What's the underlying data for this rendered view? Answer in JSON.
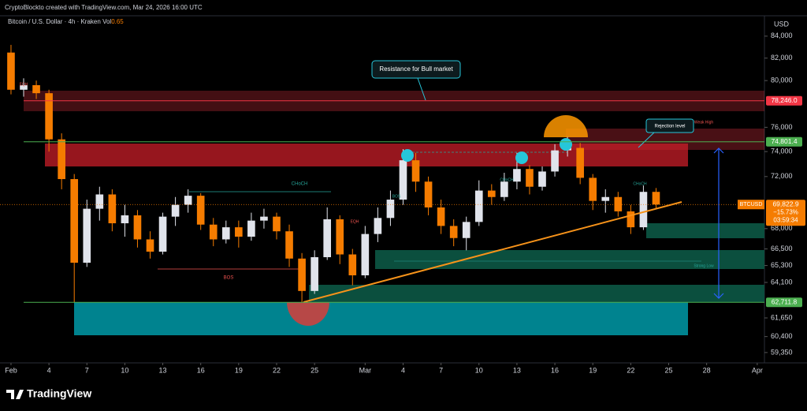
{
  "header": {
    "caption": "CryptoBlockto created with TradingView.com, Mar 24, 2026 16:00 UTC"
  },
  "footer": {
    "brand": "TradingView"
  },
  "chart_data": {
    "type": "candlestick",
    "title": "Bitcoin / U.S. Dollar · 4h · Kraken",
    "volume_label": "Vol",
    "volume_value": "0.65",
    "currency": "USD",
    "x": [
      0,
      1,
      2,
      3,
      4,
      5,
      6,
      7,
      8,
      9,
      10,
      11,
      12,
      13,
      14,
      15,
      16,
      17,
      18,
      19,
      20,
      21,
      22,
      23,
      24,
      25,
      26,
      27,
      28,
      29,
      30,
      31,
      32,
      33,
      34,
      35,
      36,
      37,
      38,
      39,
      40,
      41,
      42,
      43,
      44,
      45,
      46,
      47,
      48,
      49,
      50,
      51
    ],
    "open": [
      82500,
      79200,
      79600,
      78900,
      75000,
      71800,
      65500,
      69500,
      70600,
      68400,
      69000,
      67200,
      66300,
      68900,
      69800,
      70500,
      68300,
      67200,
      68100,
      67400,
      68600,
      68900,
      67800,
      65800,
      63500,
      65900,
      68700,
      66100,
      64600,
      67600,
      68800,
      70200,
      73300,
      71600,
      69600,
      68200,
      67300,
      68500,
      70900,
      70400,
      71600,
      72600,
      71200,
      72400,
      74100,
      74300,
      71900,
      70100,
      70400,
      69300,
      68100,
      70800
    ],
    "high": [
      83200,
      80200,
      80000,
      79200,
      75500,
      72200,
      70200,
      71200,
      71000,
      69800,
      69400,
      67800,
      69200,
      70400,
      71000,
      70700,
      68800,
      68600,
      68600,
      69200,
      69500,
      69200,
      68300,
      66200,
      66400,
      69600,
      69000,
      66500,
      68200,
      69600,
      70900,
      74200,
      73900,
      72000,
      70200,
      68700,
      68900,
      71700,
      71400,
      72300,
      73900,
      72900,
      72800,
      74600,
      75200,
      74700,
      72200,
      71000,
      70800,
      69800,
      71300,
      71100
    ],
    "low": [
      78800,
      78600,
      78400,
      74000,
      71000,
      62700,
      65200,
      68600,
      67800,
      67400,
      66600,
      65800,
      66100,
      68200,
      69200,
      67900,
      66700,
      66900,
      66600,
      67100,
      68000,
      67200,
      65200,
      62700,
      63300,
      65700,
      65400,
      63900,
      64400,
      67000,
      68200,
      69800,
      70800,
      69000,
      67600,
      66700,
      66400,
      68200,
      69800,
      70100,
      71000,
      70600,
      70900,
      72000,
      73600,
      71400,
      69400,
      69200,
      68900,
      67600,
      67900,
      69500
    ],
    "close": [
      79200,
      79600,
      78900,
      75000,
      71800,
      65500,
      69500,
      70600,
      68400,
      69000,
      67200,
      66300,
      68900,
      69800,
      70500,
      68300,
      67200,
      68100,
      67400,
      68600,
      68900,
      67800,
      65800,
      63500,
      65900,
      68700,
      66100,
      64600,
      67600,
      68800,
      70200,
      73300,
      71600,
      69600,
      68200,
      67300,
      68500,
      70900,
      70400,
      71600,
      72600,
      71200,
      72400,
      74100,
      74300,
      71900,
      70100,
      70400,
      69300,
      68100,
      70800,
      69822.9
    ],
    "up_color": "#e0e3eb",
    "down_color": "#f57c00",
    "log_scale": true,
    "xlim": [
      -0.87,
      59.57
    ],
    "xticks": [
      {
        "value": 0,
        "label": "Feb"
      },
      {
        "value": 3,
        "label": "4"
      },
      {
        "value": 6,
        "label": "7"
      },
      {
        "value": 9,
        "label": "10"
      },
      {
        "value": 12,
        "label": "13"
      },
      {
        "value": 15,
        "label": "16"
      },
      {
        "value": 18,
        "label": "19"
      },
      {
        "value": 21,
        "label": "22"
      },
      {
        "value": 24,
        "label": "25"
      },
      {
        "value": 28,
        "label": "Mar"
      },
      {
        "value": 31,
        "label": "4"
      },
      {
        "value": 34,
        "label": "7"
      },
      {
        "value": 37,
        "label": "10"
      },
      {
        "value": 40,
        "label": "13"
      },
      {
        "value": 43,
        "label": "16"
      },
      {
        "value": 46,
        "label": "19"
      },
      {
        "value": 49,
        "label": "22"
      },
      {
        "value": 52,
        "label": "25"
      },
      {
        "value": 55,
        "label": "28"
      },
      {
        "value": 59,
        "label": "Apr"
      }
    ],
    "ylim": [
      58680,
      85900
    ],
    "yticks": [
      {
        "value": 84000,
        "label": "84,000"
      },
      {
        "value": 82000,
        "label": "82,000"
      },
      {
        "value": 80000,
        "label": "80,000"
      },
      {
        "value": 76000,
        "label": "76,000"
      },
      {
        "value": 74000,
        "label": "74,000"
      },
      {
        "value": 72000,
        "label": "72,000"
      },
      {
        "value": 68000,
        "label": "68,000"
      },
      {
        "value": 66500,
        "label": "66,500"
      },
      {
        "value": 65300,
        "label": "65,300"
      },
      {
        "value": 64100,
        "label": "64,100"
      },
      {
        "value": 61650,
        "label": "61,650"
      },
      {
        "value": 60400,
        "label": "60,400"
      },
      {
        "value": 59350,
        "label": "59,350"
      }
    ],
    "price_labels": [
      {
        "value": 78246.0,
        "label": "78,246.0",
        "color": "#f23645"
      },
      {
        "value": 74801.4,
        "label": "74,801.4",
        "color": "#4caf50"
      },
      {
        "value": 62711.8,
        "label": "62,711.8",
        "color": "#4caf50"
      }
    ],
    "last_price": {
      "symbol": "BTCUSD",
      "value": 69822.9,
      "label": "69,822.9",
      "change": "−15.73%",
      "countdown": "03:59:34",
      "color": "#f57c00"
    },
    "annotations": [
      "Resistance for Bull market",
      "Rejection level",
      "CHoCH",
      "BOS",
      "EQH",
      "Weak High",
      "Strong Low"
    ]
  }
}
